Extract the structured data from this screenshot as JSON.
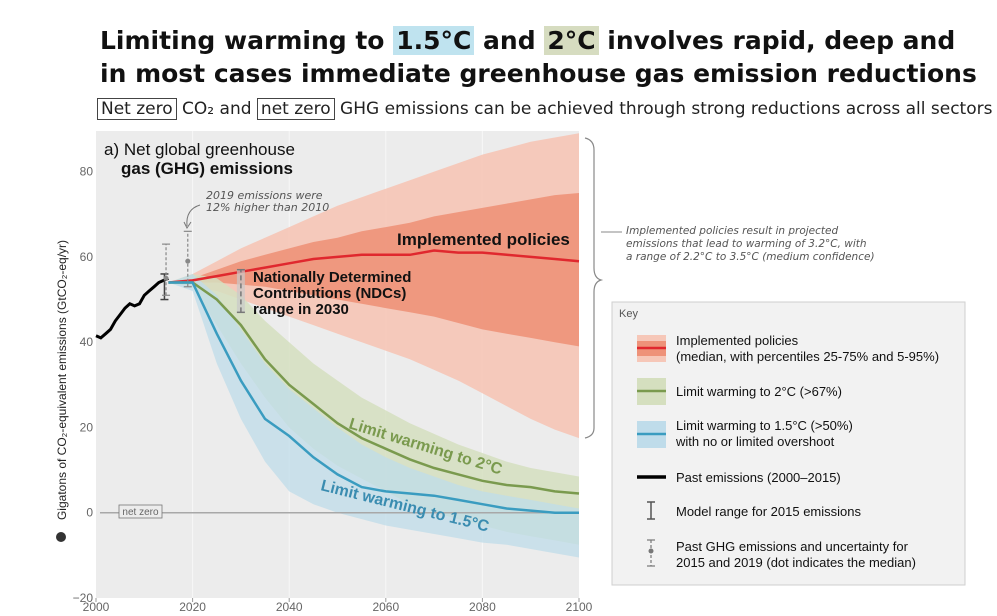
{
  "header": {
    "title_line1_pre": "Limiting warming to ",
    "title_hl1": "1.5°C",
    "title_line1_mid": " and ",
    "title_hl2": "2°C",
    "title_line1_post": " involves rapid, deep and",
    "title_line2": "in most cases immediate greenhouse gas emission reductions",
    "hl1_color": "#bfe3ef",
    "hl2_color": "#d6dcc0",
    "sub_box1": "Net zero",
    "sub_co2": " CO₂ and ",
    "sub_box2": "net zero",
    "sub_rest": " GHG emissions can be achieved through strong reductions across all sectors"
  },
  "panel": {
    "label_line1": "a) Net global greenhouse",
    "label_line2": "gas (GHG) emissions",
    "ylabel": "Gigatons of CO₂-equivalent emissions (GtCO₂-eq/yr)",
    "netzero_label": "net zero",
    "note2019_line1": "2019 emissions were",
    "note2019_line2": "12% higher than 2010",
    "ndc_line1": "Nationally Determined",
    "ndc_line2": "Contributions (NDCs)",
    "ndc_line3": "range in 2030",
    "implemented_label": "Implemented policies",
    "lim2_label": "Limit warming to 2°C",
    "lim15_label": "Limit warming to 1.5°C",
    "brace_note_line1": "Implemented policies result in projected",
    "brace_note_line2": "emissions that lead to warming of 3.2°C, with",
    "brace_note_line3": "a range of 2.2°C to 3.5°C (medium confidence)"
  },
  "key": {
    "title": "Key",
    "items": [
      {
        "line1": "Implemented policies",
        "line2": "(median, with percentiles 25-75% and 5-95%)"
      },
      {
        "line1": "Limit warming to 2°C (>67%)",
        "line2": ""
      },
      {
        "line1": "Limit warming to 1.5°C (>50%)",
        "line2": "with no or limited overshoot"
      },
      {
        "line1": "Past emissions (2000–2015)",
        "line2": ""
      },
      {
        "line1": "Model range for 2015 emissions",
        "line2": ""
      },
      {
        "line1": "Past GHG emissions and uncertainty for",
        "line2": "2015 and 2019 (dot indicates the median)"
      }
    ]
  },
  "colors": {
    "implemented_line": "#e0282e",
    "implemented_outer": "#f6c7b8",
    "implemented_inner": "#ee9279",
    "lim2_line": "#7a9a4e",
    "lim2_band": "#d5dfbf",
    "lim15_line": "#3a9cc0",
    "lim15_band": "#bfdcea",
    "past": "#000000",
    "panel_bg": "#ececec"
  },
  "chart_data": {
    "type": "area",
    "xlim": [
      2000,
      2100
    ],
    "ylim": [
      -20,
      90
    ],
    "xticks": [
      2000,
      2020,
      2040,
      2060,
      2080,
      2100
    ],
    "yticks": [
      -20,
      0,
      20,
      40,
      60,
      80
    ],
    "series": [
      {
        "name": "Past emissions (2000–2015)",
        "x": [
          2000,
          2001,
          2002,
          2003,
          2004,
          2005,
          2006,
          2007,
          2008,
          2009,
          2010,
          2011,
          2012,
          2013,
          2014,
          2015
        ],
        "y": [
          41.5,
          41,
          42,
          43,
          45,
          46.5,
          48,
          49,
          48.5,
          49,
          51,
          52,
          53,
          54,
          54.5,
          55
        ]
      },
      {
        "name": "Implemented policies",
        "x": [
          2015,
          2020,
          2025,
          2030,
          2035,
          2040,
          2045,
          2050,
          2055,
          2060,
          2065,
          2070,
          2075,
          2080,
          2085,
          2090,
          2095,
          2100
        ],
        "median": [
          54,
          54.5,
          55.5,
          56.5,
          57.5,
          58.5,
          59.5,
          60,
          60.5,
          60.5,
          60.5,
          61.5,
          61,
          61,
          60.5,
          60,
          59.5,
          59
        ],
        "p25": [
          54,
          54,
          54,
          53.5,
          53,
          52,
          51,
          50,
          49,
          48,
          47,
          46,
          44.5,
          43,
          42,
          41,
          40,
          39
        ],
        "p75": [
          54,
          55,
          57,
          59,
          60.5,
          62,
          63.5,
          64.5,
          66,
          67,
          68,
          69.5,
          70.5,
          71.5,
          72.5,
          73.5,
          74.5,
          75
        ],
        "p5": [
          54,
          53,
          52,
          50,
          48,
          46,
          44,
          42,
          40,
          38,
          36,
          33.5,
          31,
          28,
          25,
          22,
          19.5,
          17.5
        ],
        "p95": [
          54,
          56,
          59,
          62,
          64.5,
          67,
          69.5,
          72,
          74,
          76,
          78,
          80,
          82,
          84,
          85.5,
          87,
          88,
          89
        ]
      },
      {
        "name": "Limit warming to 2°C (>67%)",
        "x": [
          2015,
          2020,
          2025,
          2030,
          2035,
          2040,
          2045,
          2050,
          2055,
          2060,
          2065,
          2070,
          2075,
          2080,
          2085,
          2090,
          2095,
          2100
        ],
        "median": [
          54,
          54,
          50,
          44,
          36,
          30,
          25.5,
          21,
          17.5,
          15,
          12.5,
          10.5,
          9,
          7.5,
          6.5,
          6,
          5,
          4.5
        ],
        "low": [
          54,
          53,
          44,
          35,
          27,
          20,
          15,
          11,
          8,
          5,
          2,
          0,
          -1.5,
          -3,
          -4.5,
          -5.5,
          -6.5,
          -7.5
        ],
        "high": [
          54,
          56,
          55,
          51,
          45,
          40,
          35,
          31,
          27,
          24,
          21,
          18.5,
          16,
          14,
          12,
          10.5,
          9.5,
          8.5
        ]
      },
      {
        "name": "Limit warming to 1.5°C (>50%)",
        "x": [
          2015,
          2020,
          2025,
          2030,
          2035,
          2040,
          2045,
          2050,
          2055,
          2060,
          2065,
          2070,
          2075,
          2080,
          2085,
          2090,
          2095,
          2100
        ],
        "median": [
          54,
          54,
          42,
          31,
          22,
          18,
          13,
          9,
          6,
          5,
          4.5,
          4,
          3,
          2,
          1,
          0.5,
          0,
          0
        ],
        "low": [
          54,
          52,
          35,
          22,
          12,
          5,
          2,
          0,
          -1.5,
          -3,
          -4,
          -5,
          -6,
          -7,
          -7.5,
          -8.5,
          -9.5,
          -10.5
        ],
        "high": [
          54,
          56,
          51,
          43,
          35,
          29,
          24.5,
          20,
          16,
          13,
          10.5,
          8.5,
          6.5,
          5,
          4,
          3,
          2,
          1
        ]
      }
    ],
    "model_range_2015": {
      "x": 2015,
      "low": 50,
      "high": 56
    },
    "past_uncertainty_2015": {
      "x": 2014.5,
      "median": 55,
      "low": 51,
      "high": 63
    },
    "past_uncertainty_2019": {
      "x": 2019,
      "median": 59,
      "low": 53,
      "high": 66
    },
    "ndc_range_2030": {
      "x": 2030,
      "low": 47,
      "high": 57
    }
  }
}
